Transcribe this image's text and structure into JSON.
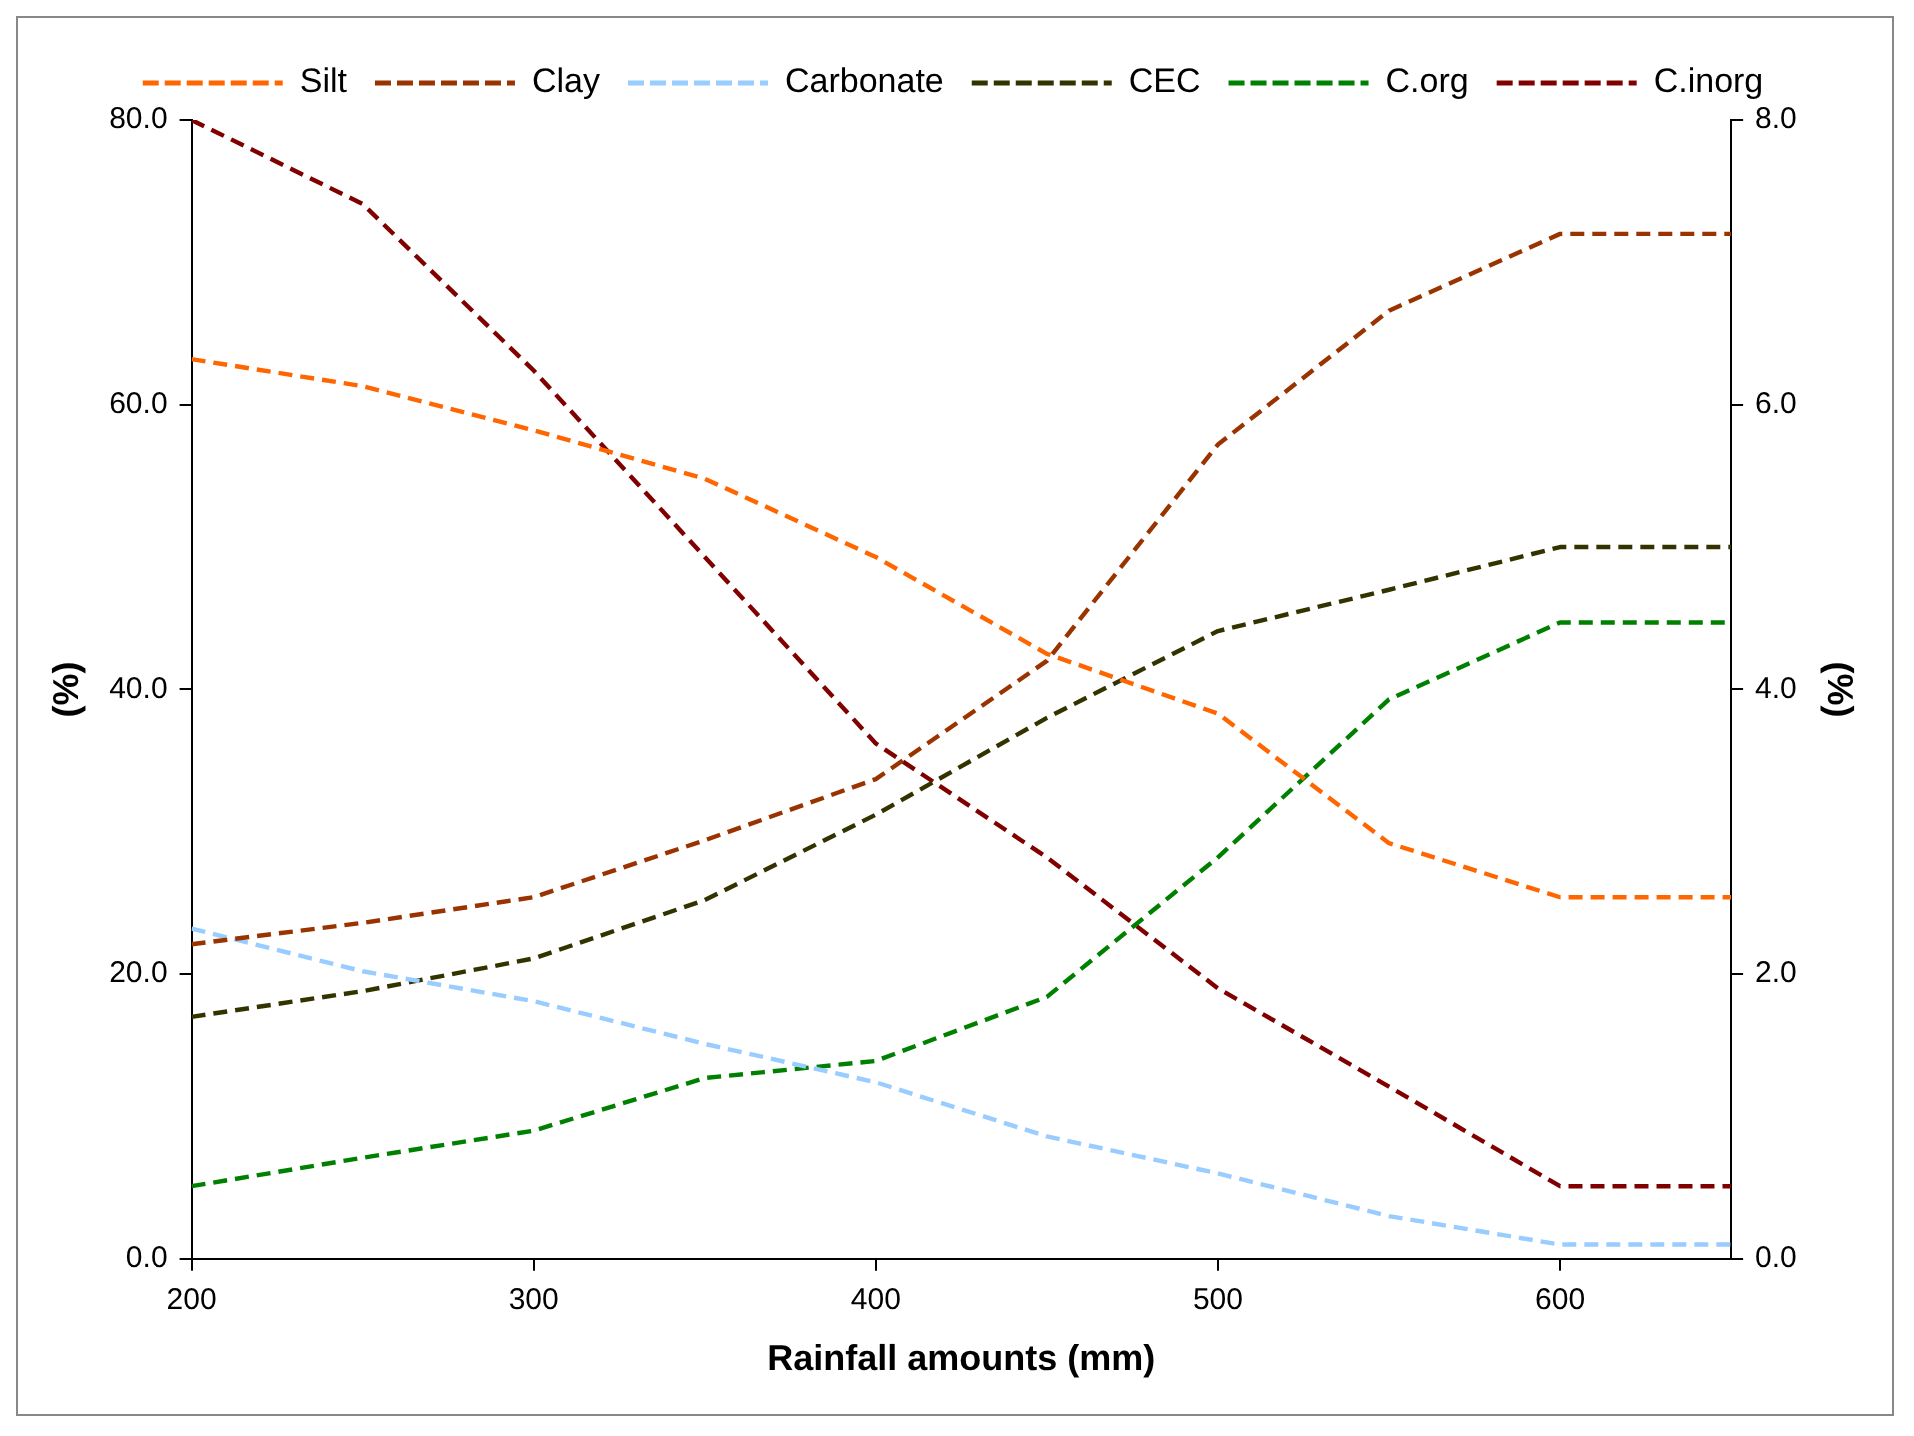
{
  "chart_data": {
    "type": "line",
    "xlabel": "Rainfall amounts (mm)",
    "ylabel": "(%)",
    "y2label": "(%)",
    "x": [
      200,
      250,
      300,
      350,
      400,
      450,
      500,
      550,
      600,
      650
    ],
    "series": [
      {
        "name": "Silt",
        "color": "#ff6600",
        "line_style": "dashed",
        "values": [
          63.2,
          61.3,
          58.2,
          54.8,
          49.3,
          42.5,
          38.3,
          29.2,
          25.4,
          25.4
        ]
      },
      {
        "name": "Clay",
        "color": "#993300",
        "line_style": "dashed",
        "values": [
          22.1,
          23.6,
          25.4,
          29.4,
          33.7,
          42.0,
          57.2,
          66.6,
          72.0,
          72.0
        ]
      },
      {
        "name": "Carbonate",
        "color": "#99ccff",
        "line_style": "dashed",
        "values": [
          23.2,
          20.2,
          18.1,
          15.1,
          12.4,
          8.6,
          6.0,
          3.0,
          1.0,
          1.0
        ]
      },
      {
        "name": "CEC",
        "color": "#333300",
        "line_style": "dashed",
        "values": [
          17.0,
          18.8,
          21.1,
          25.2,
          31.2,
          38.0,
          44.1,
          47.0,
          50.0,
          50.0
        ]
      },
      {
        "name": "C.org",
        "color": "#008000",
        "line_style": "dashed",
        "axis": "y2",
        "values": [
          0.51,
          0.71,
          0.9,
          1.27,
          1.39,
          1.84,
          2.82,
          3.93,
          4.47,
          4.47
        ]
      },
      {
        "name": "C.inorg",
        "color": "#800000",
        "line_style": "dashed",
        "axis": "y2",
        "values": [
          8.0,
          7.41,
          6.24,
          4.93,
          3.62,
          2.82,
          1.9,
          1.21,
          0.51,
          0.51
        ]
      }
    ],
    "xlim": [
      200,
      650
    ],
    "xticks": [
      200,
      300,
      400,
      500,
      600
    ],
    "ylim": [
      0,
      80
    ],
    "yticks": [
      {
        "value": 0,
        "label": "0.0"
      },
      {
        "value": 20,
        "label": "20.0"
      },
      {
        "value": 40,
        "label": "40.0"
      },
      {
        "value": 60,
        "label": "60.0"
      },
      {
        "value": 80,
        "label": "80.0"
      }
    ],
    "y2lim": [
      0,
      8
    ],
    "y2ticks": [
      {
        "value": 0,
        "label": "0.0"
      },
      {
        "value": 2,
        "label": "2.0"
      },
      {
        "value": 4,
        "label": "4.0"
      },
      {
        "value": 6,
        "label": "6.0"
      },
      {
        "value": 8,
        "label": "8.0"
      }
    ],
    "grid": false,
    "legend": "top",
    "marker": "none"
  }
}
